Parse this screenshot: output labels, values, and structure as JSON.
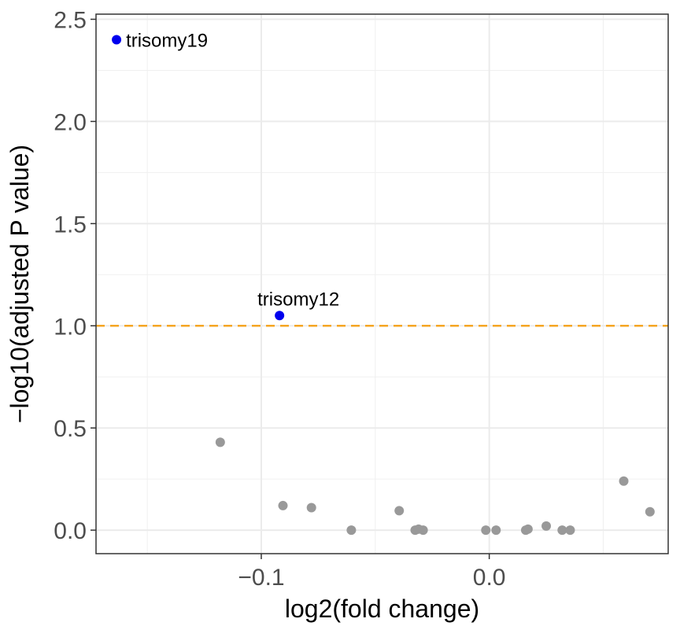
{
  "chart_data": {
    "type": "scatter",
    "title": "",
    "xlabel": "log2(fold change)",
    "ylabel": "−log10(adjusted P value)",
    "xlim": [
      -0.1725,
      0.0785
    ],
    "ylim": [
      -0.115,
      2.525
    ],
    "x_ticks": [
      -0.1,
      0.0
    ],
    "x_tick_labels": [
      "−0.1",
      "0.0"
    ],
    "y_ticks": [
      0.0,
      0.5,
      1.0,
      1.5,
      2.0,
      2.5
    ],
    "y_tick_labels": [
      "0.0",
      "0.5",
      "1.0",
      "1.5",
      "2.0",
      "2.5"
    ],
    "grid": true,
    "threshold": {
      "y": 1.0,
      "color": "#F5A623",
      "style": "dashed"
    },
    "colors": {
      "significant": "#0000EE",
      "not_significant": "#999999"
    },
    "points": [
      {
        "x": -0.1635,
        "y": 2.4,
        "label": "trisomy19",
        "significant": true
      },
      {
        "x": -0.092,
        "y": 1.05,
        "label": "trisomy12",
        "significant": true
      },
      {
        "x": -0.118,
        "y": 0.43
      },
      {
        "x": -0.0905,
        "y": 0.12
      },
      {
        "x": -0.078,
        "y": 0.11
      },
      {
        "x": -0.0605,
        "y": 0.0
      },
      {
        "x": -0.0395,
        "y": 0.095
      },
      {
        "x": -0.0325,
        "y": 0.0
      },
      {
        "x": -0.031,
        "y": 0.005
      },
      {
        "x": -0.029,
        "y": 0.0
      },
      {
        "x": -0.0015,
        "y": 0.0
      },
      {
        "x": 0.003,
        "y": 0.0
      },
      {
        "x": 0.016,
        "y": 0.0
      },
      {
        "x": 0.017,
        "y": 0.005
      },
      {
        "x": 0.025,
        "y": 0.02
      },
      {
        "x": 0.032,
        "y": 0.0
      },
      {
        "x": 0.0355,
        "y": 0.0
      },
      {
        "x": 0.059,
        "y": 0.24
      },
      {
        "x": 0.0705,
        "y": 0.09
      }
    ]
  }
}
